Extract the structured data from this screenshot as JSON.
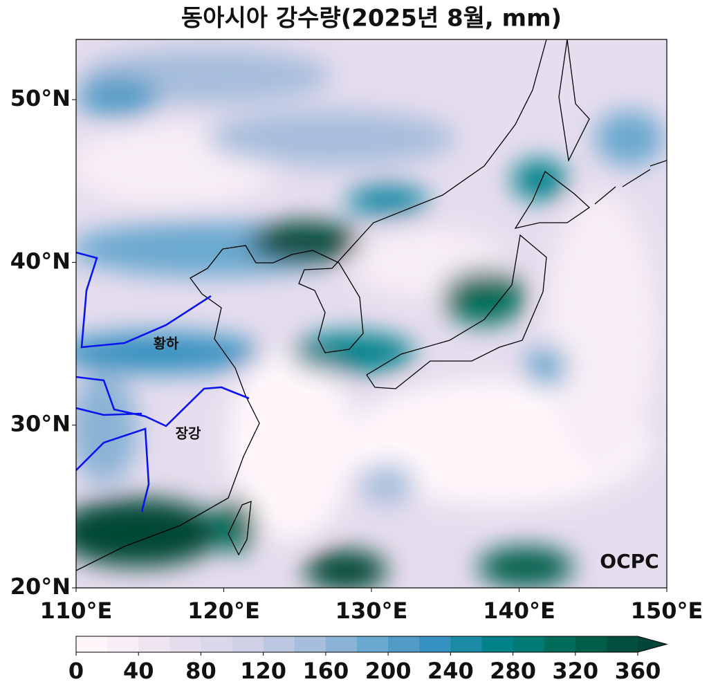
{
  "map": {
    "title": "동아시아 강수량(2025년 8월, mm)",
    "lonlim": [
      110,
      150
    ],
    "latlim": [
      20,
      53.7
    ],
    "lonticks": [
      {
        "value": 110,
        "label": "110°E"
      },
      {
        "value": 120,
        "label": "120°E"
      },
      {
        "value": 130,
        "label": "130°E"
      },
      {
        "value": 140,
        "label": "140°E"
      },
      {
        "value": 150,
        "label": "150°E"
      }
    ],
    "latticks": [
      {
        "value": 20,
        "label": "20°N"
      },
      {
        "value": 30,
        "label": "30°N"
      },
      {
        "value": 40,
        "label": "40°N"
      },
      {
        "value": 50,
        "label": "50°N"
      }
    ],
    "river_labels": [
      "황하",
      "장강"
    ],
    "logo": "OCPC",
    "colorbar": {
      "lim": [
        0,
        360
      ],
      "ticks": [
        0,
        40,
        80,
        120,
        160,
        200,
        240,
        280,
        320,
        360
      ],
      "colors": [
        "#fff7fb",
        "#f7eef6",
        "#efe5f1",
        "#e6ddee",
        "#dcd8eb",
        "#d0d1e6",
        "#bcc7e1",
        "#a6bddb",
        "#8bb3d5",
        "#6ba8cf",
        "#529bc6",
        "#3690c0",
        "#1b8aa5",
        "#02818a",
        "#017a74",
        "#016c59",
        "#015e4b",
        "#014f3e",
        "#014636"
      ],
      "extend": "max"
    }
  }
}
